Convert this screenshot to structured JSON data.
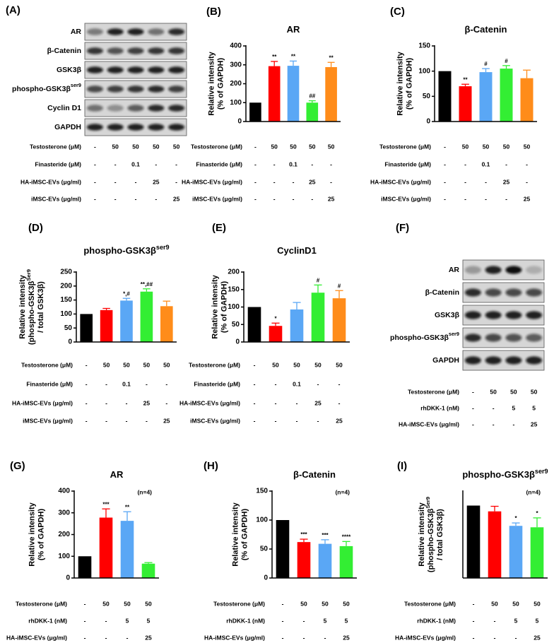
{
  "chart_data": [
    {
      "type": "bar",
      "panel": "(B)",
      "title": {
        "text": "AR"
      },
      "ylabel": [
        {
          "text": "Relative intensity"
        },
        {
          "text": "(% of GAPDH)"
        }
      ],
      "values": [
        100,
        293,
        295,
        100,
        288
      ],
      "errors": [
        null,
        25,
        25,
        10,
        25
      ],
      "significance": [
        null,
        "**",
        "**",
        "##",
        "**"
      ],
      "colors": [
        "#000000",
        "#ff0000",
        "#5aa7f5",
        "#33ee33",
        "#ff8c1a"
      ],
      "ylim": [
        0,
        400
      ],
      "yticks": [
        0,
        100,
        200,
        300,
        400
      ],
      "treatments": [
        {
          "name": "Testosterone (μM)",
          "levels": [
            "-",
            "50",
            "50",
            "50",
            "50"
          ]
        },
        {
          "name": "Finasteride (μM)",
          "levels": [
            "-",
            "-",
            "0.1",
            "-",
            "-"
          ]
        },
        {
          "name": "HA-iMSC-EVs (μg/ml)",
          "levels": [
            "-",
            "-",
            "-",
            "25",
            "-"
          ]
        },
        {
          "name": "iMSC-EVs (μg/ml)",
          "levels": [
            "-",
            "-",
            "-",
            "-",
            "25"
          ]
        }
      ]
    },
    {
      "type": "bar",
      "panel": "(C)",
      "title": {
        "text": "β-Catenin"
      },
      "ylabel": [
        {
          "text": "Relative intensity"
        },
        {
          "text": "(% of GAPDH)"
        }
      ],
      "values": [
        100,
        70,
        98,
        105,
        86
      ],
      "errors": [
        null,
        4,
        7,
        6,
        16
      ],
      "significance": [
        null,
        "**",
        "#",
        "#",
        null
      ],
      "colors": [
        "#000000",
        "#ff0000",
        "#5aa7f5",
        "#33ee33",
        "#ff8c1a"
      ],
      "ylim": [
        0,
        150
      ],
      "yticks": [
        0,
        50,
        100,
        150
      ],
      "treatments": [
        {
          "name": "Testosterone (μM)",
          "levels": [
            "-",
            "50",
            "50",
            "50",
            "50"
          ]
        },
        {
          "name": "Finasteride (μM)",
          "levels": [
            "-",
            "-",
            "0.1",
            "-",
            "-"
          ]
        },
        {
          "name": "HA-iMSC-EVs (μg/ml)",
          "levels": [
            "-",
            "-",
            "-",
            "25",
            "-"
          ]
        },
        {
          "name": "iMSC-EVs (μg/ml)",
          "levels": [
            "-",
            "-",
            "-",
            "-",
            "25"
          ]
        }
      ]
    },
    {
      "type": "bar",
      "panel": "(D)",
      "title": {
        "text": "phospho-GSK3β",
        "sup": "ser9"
      },
      "ylabel": [
        {
          "text": "Relative intensity"
        },
        {
          "text": "(phospho-GSK3β",
          "sup": "Ser9"
        },
        {
          "text": "/ total GSK3β)"
        }
      ],
      "values": [
        100,
        114,
        148,
        180,
        128
      ],
      "errors": [
        null,
        6,
        8,
        10,
        18
      ],
      "significance": [
        null,
        null,
        "*,#",
        "**,##",
        null
      ],
      "colors": [
        "#000000",
        "#ff0000",
        "#5aa7f5",
        "#33ee33",
        "#ff8c1a"
      ],
      "ylim": [
        0,
        250
      ],
      "yticks": [
        0,
        50,
        100,
        150,
        200,
        250
      ],
      "treatments": [
        {
          "name": "Testosterone (μM)",
          "levels": [
            "-",
            "50",
            "50",
            "50",
            "50"
          ]
        },
        {
          "name": "Finasteride (μM)",
          "levels": [
            "-",
            "-",
            "0.1",
            "-",
            "-"
          ]
        },
        {
          "name": "HA-iMSC-EVs (μg/ml)",
          "levels": [
            "-",
            "-",
            "-",
            "25",
            "-"
          ]
        },
        {
          "name": "iMSC-EVs (μg/ml)",
          "levels": [
            "-",
            "-",
            "-",
            "-",
            "25"
          ]
        }
      ]
    },
    {
      "type": "bar",
      "panel": "(E)",
      "title": {
        "text": "CyclinD1"
      },
      "ylabel": [
        {
          "text": "Relative intensity"
        },
        {
          "text": "(% of GAPDH)"
        }
      ],
      "values": [
        100,
        46,
        93,
        141,
        125
      ],
      "errors": [
        null,
        8,
        20,
        22,
        22
      ],
      "significance": [
        null,
        "*",
        null,
        "#",
        "#"
      ],
      "colors": [
        "#000000",
        "#ff0000",
        "#5aa7f5",
        "#33ee33",
        "#ff8c1a"
      ],
      "ylim": [
        0,
        200
      ],
      "yticks": [
        0,
        50,
        100,
        150,
        200
      ],
      "treatments": [
        {
          "name": "Testosterone (μM)",
          "levels": [
            "-",
            "50",
            "50",
            "50",
            "50"
          ]
        },
        {
          "name": "Finasteride (μM)",
          "levels": [
            "-",
            "-",
            "0.1",
            "-",
            "-"
          ]
        },
        {
          "name": "HA-iMSC-EVs (μg/ml)",
          "levels": [
            "-",
            "-",
            "-",
            "25",
            "-"
          ]
        },
        {
          "name": "iMSC-EVs (μg/ml)",
          "levels": [
            "-",
            "-",
            "-",
            "-",
            "25"
          ]
        }
      ]
    },
    {
      "type": "bar",
      "panel": "(G)",
      "title": {
        "text": "AR"
      },
      "note": "(n=4)",
      "ylabel": [
        {
          "text": "Relative intensity"
        },
        {
          "text": "(% of GAPDH)"
        }
      ],
      "values": [
        100,
        278,
        263,
        66
      ],
      "errors": [
        null,
        40,
        42,
        5
      ],
      "significance": [
        null,
        "***",
        "**",
        null
      ],
      "colors": [
        "#000000",
        "#ff0000",
        "#5aa7f5",
        "#33ee33"
      ],
      "ylim": [
        0,
        400
      ],
      "yticks": [
        0,
        100,
        200,
        300,
        400
      ],
      "treatments": [
        {
          "name": "Testosterone (μM)",
          "levels": [
            "-",
            "50",
            "50",
            "50"
          ]
        },
        {
          "name": "rhDKK-1 (nM)",
          "levels": [
            "-",
            "-",
            "5",
            "5"
          ]
        },
        {
          "name": "HA-iMSC-EVs (μg/ml)",
          "levels": [
            "-",
            "-",
            "-",
            "25"
          ]
        }
      ]
    },
    {
      "type": "bar",
      "panel": "(H)",
      "title": {
        "text": "β-Catenin"
      },
      "note": "(n=4)",
      "ylabel": [
        {
          "text": "Relative intensity"
        },
        {
          "text": "(% of GAPDH)"
        }
      ],
      "values": [
        100,
        62,
        59,
        55
      ],
      "errors": [
        null,
        5,
        7,
        8
      ],
      "significance": [
        null,
        "***",
        "***",
        "****"
      ],
      "colors": [
        "#000000",
        "#ff0000",
        "#5aa7f5",
        "#33ee33"
      ],
      "ylim": [
        0,
        150
      ],
      "yticks": [
        0,
        50,
        100,
        150
      ],
      "treatments": [
        {
          "name": "Testosterone (μM)",
          "levels": [
            "-",
            "50",
            "50",
            "50"
          ]
        },
        {
          "name": "rhDKK-1 (nM)",
          "levels": [
            "-",
            "-",
            "5",
            "5"
          ]
        },
        {
          "name": "HA-iMSC-EVs (μg/ml)",
          "levels": [
            "-",
            "-",
            "-",
            "25"
          ]
        }
      ]
    },
    {
      "type": "bar",
      "panel": "(I)",
      "title": {
        "text": "phospho-GSK3β",
        "sup": "ser9"
      },
      "note": "(n=4)",
      "ylabel": [
        {
          "text": "Relative intensity"
        },
        {
          "text": "(phospho-GSK3β",
          "sup": "Ser9"
        },
        {
          "text": "/ total GSK3β)"
        }
      ],
      "values": [
        100,
        92,
        72,
        70
      ],
      "errors": [
        null,
        7,
        4,
        13
      ],
      "significance": [
        null,
        null,
        "*",
        "*"
      ],
      "colors": [
        "#000000",
        "#ff0000",
        "#5aa7f5",
        "#33ee33"
      ],
      "ylim": [
        0,
        120
      ],
      "treatments": [
        {
          "name": "Testosterone (μM)",
          "levels": [
            "-",
            "50",
            "50",
            "50"
          ]
        },
        {
          "name": "rhDKK-1 (nM)",
          "levels": [
            "-",
            "-",
            "5",
            "5"
          ]
        },
        {
          "name": "HA-iMSC-EVs (μg/ml)",
          "levels": [
            "-",
            "-",
            "-",
            "25"
          ]
        }
      ]
    }
  ],
  "blots": [
    {
      "panel": "(A)",
      "proteins": [
        {
          "text": "AR"
        },
        {
          "text": "β-Catenin"
        },
        {
          "text": "GSK3β"
        },
        {
          "text": "phospho-GSK3β",
          "sup": "ser9"
        },
        {
          "text": "Cyclin D1"
        },
        {
          "text": "GAPDH"
        }
      ],
      "treatments": [
        {
          "name": "Testosterone (μM)",
          "levels": [
            "-",
            "50",
            "50",
            "50",
            "50"
          ]
        },
        {
          "name": "Finasteride (μM)",
          "levels": [
            "-",
            "-",
            "0.1",
            "-",
            "-"
          ]
        },
        {
          "name": "HA-iMSC-EVs (μg/ml)",
          "levels": [
            "-",
            "-",
            "-",
            "25",
            "-"
          ]
        },
        {
          "name": "iMSC-EVs (μg/ml)",
          "levels": [
            "-",
            "-",
            "-",
            "-",
            "25"
          ]
        }
      ]
    },
    {
      "panel": "(F)",
      "proteins": [
        {
          "text": "AR"
        },
        {
          "text": "β-Catenin"
        },
        {
          "text": "GSK3β"
        },
        {
          "text": "phospho-GSK3β",
          "sup": "ser9"
        },
        {
          "text": "GAPDH"
        }
      ],
      "treatments": [
        {
          "name": "Testosterone (μM)",
          "levels": [
            "-",
            "50",
            "50",
            "50"
          ]
        },
        {
          "name": "rhDKK-1 (nM)",
          "levels": [
            "-",
            "-",
            "5",
            "5"
          ]
        },
        {
          "name": "HA-iMSC-EVs (μg/ml)",
          "levels": [
            "-",
            "-",
            "-",
            "25"
          ]
        }
      ]
    }
  ]
}
